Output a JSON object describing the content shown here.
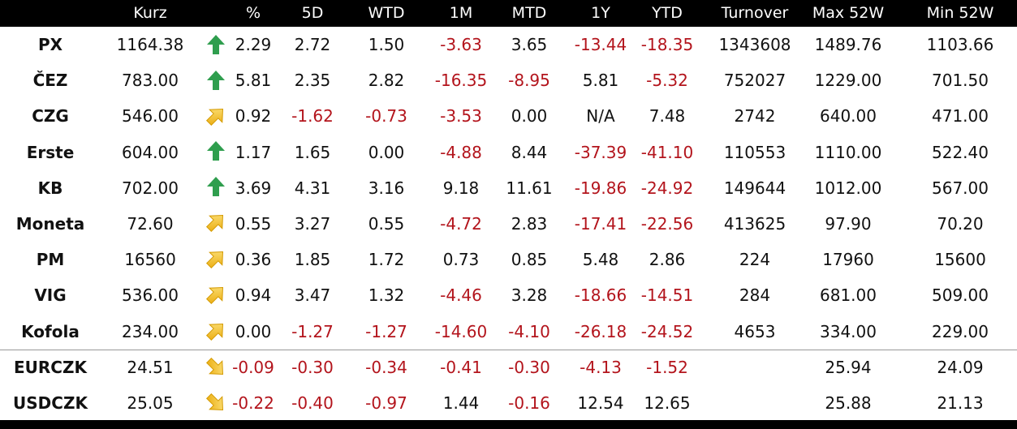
{
  "header": {
    "columns": [
      "Kurz",
      "%",
      "5D",
      "WTD",
      "1M",
      "MTD",
      "1Y",
      "YTD",
      "Turnover",
      "Max 52W",
      "Min 52W"
    ]
  },
  "rows": [
    [
      "PX",
      "1164.38",
      "2.29",
      "2.72",
      "1.50",
      "-3.63",
      "3.65",
      "-13.44",
      "-18.35",
      "1343608",
      "1489.76",
      "1103.66"
    ],
    [
      "ČEZ",
      "783.00",
      "5.81",
      "2.35",
      "2.82",
      "-16.35",
      "-8.95",
      "5.81",
      "-5.32",
      "752027",
      "1229.00",
      "701.50"
    ],
    [
      "CZG",
      "546.00",
      "0.92",
      "-1.62",
      "-0.73",
      "-3.53",
      "0.00",
      "N/A",
      "7.48",
      "2742",
      "640.00",
      "471.00"
    ],
    [
      "Erste",
      "604.00",
      "1.17",
      "1.65",
      "0.00",
      "-4.88",
      "8.44",
      "-37.39",
      "-41.10",
      "110553",
      "1110.00",
      "522.40"
    ],
    [
      "KB",
      "702.00",
      "3.69",
      "4.31",
      "3.16",
      "9.18",
      "11.61",
      "-19.86",
      "-24.92",
      "149644",
      "1012.00",
      "567.00"
    ],
    [
      "Moneta",
      "72.60",
      "0.55",
      "3.27",
      "0.55",
      "-4.72",
      "2.83",
      "-17.41",
      "-22.56",
      "413625",
      "97.90",
      "70.20"
    ],
    [
      "PM",
      "16560",
      "0.36",
      "1.85",
      "1.72",
      "0.73",
      "0.85",
      "5.48",
      "2.86",
      "224",
      "17960",
      "15600"
    ],
    [
      "VIG",
      "536.00",
      "0.94",
      "3.47",
      "1.32",
      "-4.46",
      "3.28",
      "-18.66",
      "-14.51",
      "284",
      "681.00",
      "509.00"
    ],
    [
      "Kofola",
      "234.00",
      "0.00",
      "-1.27",
      "-1.27",
      "-14.60",
      "-4.10",
      "-26.18",
      "-24.52",
      "4653",
      "334.00",
      "229.00"
    ],
    [
      "EURCZK",
      "24.51",
      "-0.09",
      "-0.30",
      "-0.34",
      "-0.41",
      "-0.30",
      "-4.13",
      "-1.52",
      null,
      "25.94",
      "24.09"
    ],
    [
      "USDCZK",
      "25.05",
      "-0.22",
      "-0.40",
      "-0.97",
      "1.44",
      "-0.16",
      "12.54",
      "12.65",
      null,
      "25.88",
      "21.13"
    ]
  ]
}
